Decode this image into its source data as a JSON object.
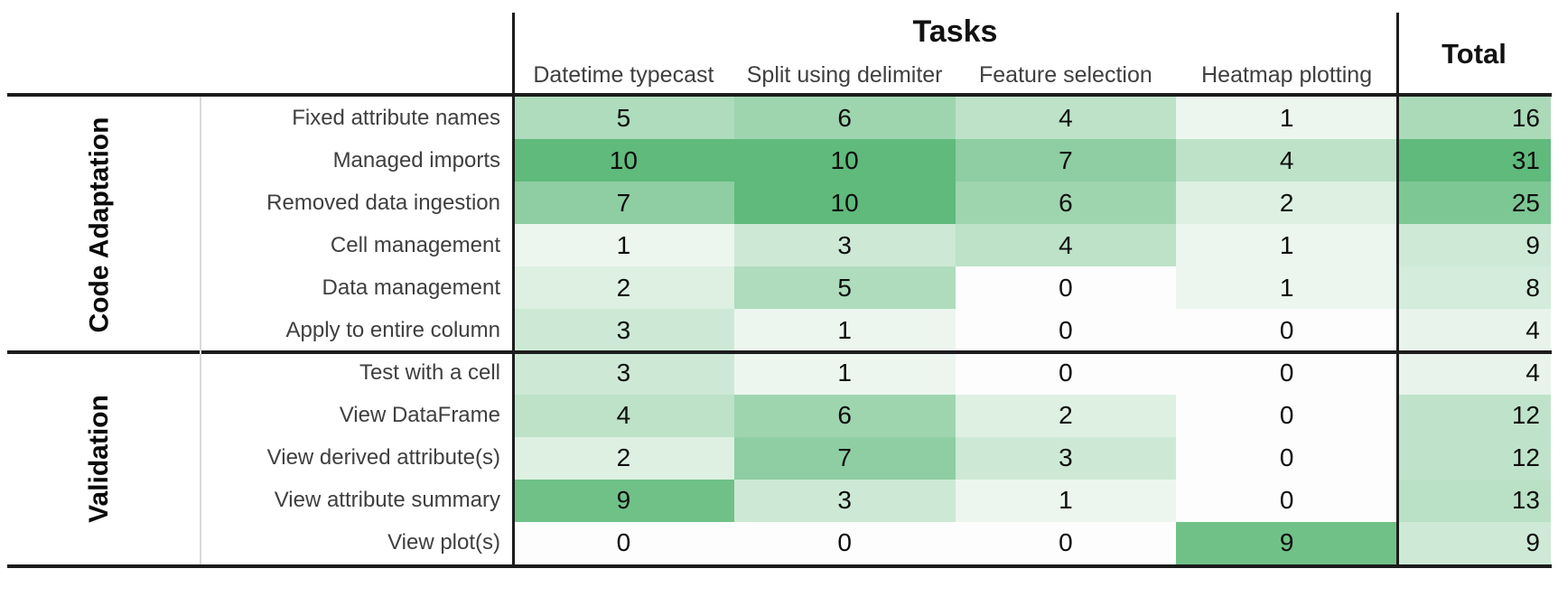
{
  "chart_data": {
    "type": "heatmap",
    "col_group_label": "Tasks",
    "columns": [
      "Datetime typecast",
      "Split using delimiter",
      "Feature selection",
      "Heatmap plotting"
    ],
    "total_label": "Total",
    "row_groups": [
      {
        "label": "Code Adaptation",
        "rows": [
          {
            "label": "Fixed attribute names",
            "values": [
              5,
              6,
              4,
              1
            ],
            "total": 16
          },
          {
            "label": "Managed imports",
            "values": [
              10,
              10,
              7,
              4
            ],
            "total": 31
          },
          {
            "label": "Removed data ingestion",
            "values": [
              7,
              10,
              6,
              2
            ],
            "total": 25
          },
          {
            "label": "Cell management",
            "values": [
              1,
              3,
              4,
              1
            ],
            "total": 9
          },
          {
            "label": "Data management",
            "values": [
              2,
              5,
              0,
              1
            ],
            "total": 8
          },
          {
            "label": "Apply to entire column",
            "values": [
              3,
              1,
              0,
              0
            ],
            "total": 4
          }
        ]
      },
      {
        "label": "Validation",
        "rows": [
          {
            "label": "Test with a cell",
            "values": [
              3,
              1,
              0,
              0
            ],
            "total": 4
          },
          {
            "label": "View DataFrame",
            "values": [
              4,
              6,
              2,
              0
            ],
            "total": 12
          },
          {
            "label": "View derived attribute(s)",
            "values": [
              2,
              7,
              3,
              0
            ],
            "total": 12
          },
          {
            "label": "View attribute summary",
            "values": [
              9,
              3,
              1,
              0
            ],
            "total": 13
          },
          {
            "label": "View plot(s)",
            "values": [
              0,
              0,
              0,
              9
            ],
            "total": 9
          }
        ]
      }
    ],
    "color_scale": {
      "min_color": "#fcfdfc",
      "max_color": "#5fba7b",
      "cell_vmax": 10,
      "total_vmax": 31
    },
    "layout": {
      "grid": "off",
      "legend": "none",
      "value_labels": "on"
    }
  }
}
